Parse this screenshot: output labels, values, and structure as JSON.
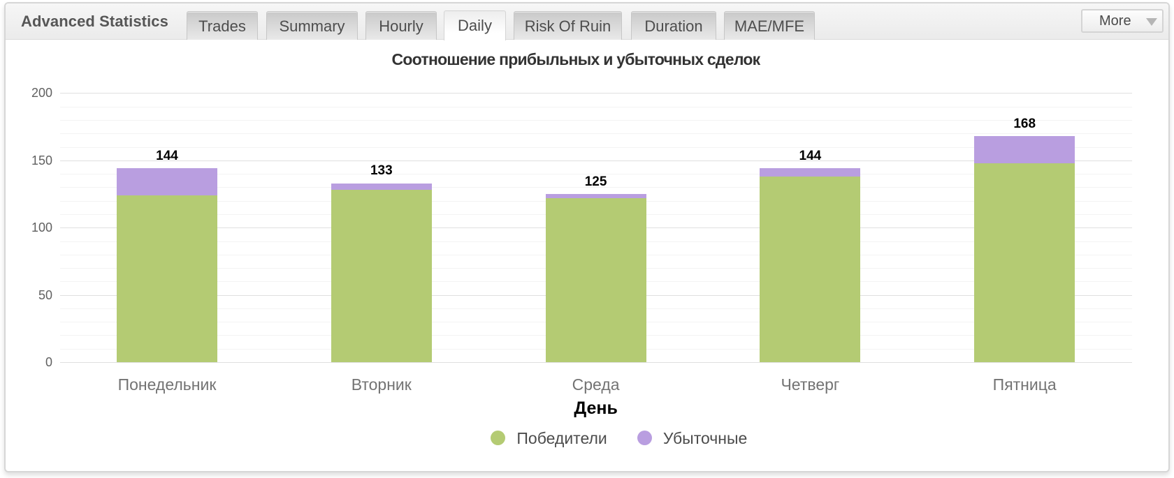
{
  "header": {
    "title": "Advanced Statistics",
    "more_label": "More"
  },
  "tabs": [
    {
      "label": "Trades",
      "active": false
    },
    {
      "label": "Summary",
      "active": false
    },
    {
      "label": "Hourly",
      "active": false
    },
    {
      "label": "Daily",
      "active": true
    },
    {
      "label": "Risk Of Ruin",
      "active": false
    },
    {
      "label": "Duration",
      "active": false
    },
    {
      "label": "MAE/MFE",
      "active": false
    }
  ],
  "chart_data": {
    "type": "bar",
    "stacked": true,
    "title": "Соотношение прибыльных и убыточных сделок",
    "xlabel": "День",
    "ylabel": "",
    "categories": [
      "Понедельник",
      "Вторник",
      "Среда",
      "Четверг",
      "Пятница"
    ],
    "series": [
      {
        "name": "Победители",
        "color": "#b4cb73",
        "values": [
          124,
          128,
          122,
          138,
          148
        ]
      },
      {
        "name": "Убыточные",
        "color": "#b99ee0",
        "values": [
          20,
          5,
          3,
          6,
          20
        ]
      }
    ],
    "totals": [
      144,
      133,
      125,
      144,
      168
    ],
    "ylim": [
      0,
      200
    ],
    "yticks": [
      0,
      50,
      100,
      150,
      200
    ],
    "minor_grid_step": 10,
    "grid": true,
    "legend_position": "bottom"
  }
}
